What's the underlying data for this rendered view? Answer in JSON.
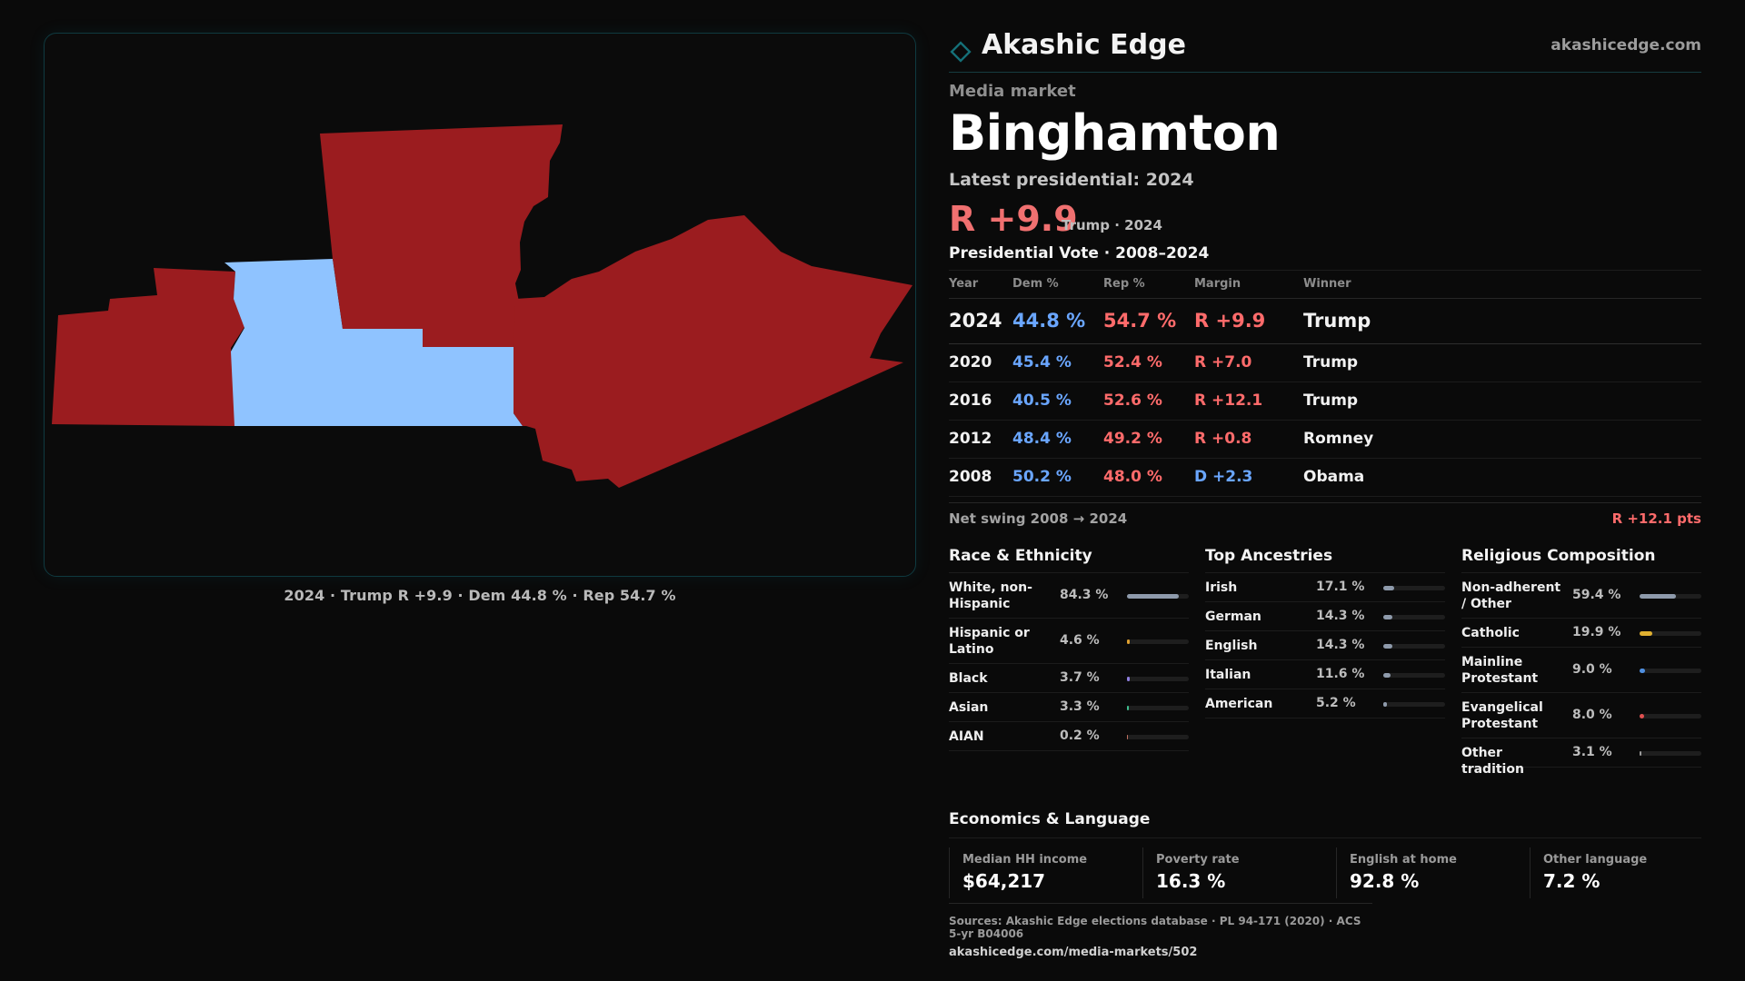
{
  "brand": {
    "name": "Akashic Edge",
    "url": "akashicedge.com",
    "logo_icon": "diamond-outline-icon"
  },
  "colors": {
    "rep": "#9b1c1f",
    "dem": "#8fc3ff",
    "rep_text": "#ff6b6b",
    "dem_text": "#6aa6ff",
    "accent": "#0f5a60"
  },
  "map": {
    "caption": "2024 · Trump R +9.9 · Dem 44.8 % · Rep 54.7 %",
    "regions": [
      {
        "id": "west-county",
        "party": "rep"
      },
      {
        "id": "broome-county",
        "party": "dem"
      },
      {
        "id": "chenango-county",
        "party": "rep"
      },
      {
        "id": "susquehanna-county",
        "party": "rep"
      }
    ]
  },
  "header": {
    "kicker": "Media market",
    "title": "Binghamton",
    "latest_label": "Latest presidential: 2024",
    "big_margin": "R +9.9",
    "winner_tag": "Trump · 2024"
  },
  "votes": {
    "heading": "Presidential Vote · 2008–2024",
    "columns": [
      "Year",
      "Dem %",
      "Rep %",
      "Margin",
      "Winner"
    ],
    "rows": [
      {
        "year": "2024",
        "dem": "44.8 %",
        "rep": "54.7 %",
        "margin": "R +9.9",
        "winner": "Trump"
      },
      {
        "year": "2020",
        "dem": "45.4 %",
        "rep": "52.4 %",
        "margin": "R +7.0",
        "winner": "Trump"
      },
      {
        "year": "2016",
        "dem": "40.5 %",
        "rep": "52.6 %",
        "margin": "R +12.1",
        "winner": "Trump"
      },
      {
        "year": "2012",
        "dem": "48.4 %",
        "rep": "49.2 %",
        "margin": "R +0.8",
        "winner": "Romney"
      },
      {
        "year": "2008",
        "dem": "50.2 %",
        "rep": "48.0 %",
        "margin": "D +2.3",
        "winner": "Obama"
      }
    ],
    "swing_label": "Net swing 2008 → 2024",
    "swing_value": "R +12.1 pts"
  },
  "race": {
    "heading": "Race & Ethnicity",
    "items": [
      {
        "label": "White, non-Hispanic",
        "value": "84.3 %",
        "pct": 84.3,
        "color": "#8e9aab"
      },
      {
        "label": "Hispanic or Latino",
        "value": "4.6 %",
        "pct": 4.6,
        "color": "#e0a030"
      },
      {
        "label": "Black",
        "value": "3.7 %",
        "pct": 3.7,
        "color": "#8f7fe0"
      },
      {
        "label": "Asian",
        "value": "3.3 %",
        "pct": 3.3,
        "color": "#3fbf8f"
      },
      {
        "label": "AIAN",
        "value": "0.2 %",
        "pct": 0.2,
        "color": "#c07060"
      }
    ]
  },
  "ancestry": {
    "heading": "Top Ancestries",
    "items": [
      {
        "label": "Irish",
        "value": "17.1 %",
        "pct": 17.1
      },
      {
        "label": "German",
        "value": "14.3 %",
        "pct": 14.3
      },
      {
        "label": "English",
        "value": "14.3 %",
        "pct": 14.3
      },
      {
        "label": "Italian",
        "value": "11.6 %",
        "pct": 11.6
      },
      {
        "label": "American",
        "value": "5.2 %",
        "pct": 5.2
      }
    ]
  },
  "religion": {
    "heading": "Religious Composition",
    "items": [
      {
        "label": "Non-adherent / Other",
        "value": "59.4 %",
        "pct": 59.4,
        "color": "#8e9aab"
      },
      {
        "label": "Catholic",
        "value": "19.9 %",
        "pct": 19.9,
        "color": "#e0b030"
      },
      {
        "label": "Mainline Protestant",
        "value": "9.0 %",
        "pct": 9.0,
        "color": "#4f8fe0"
      },
      {
        "label": "Evangelical Protestant",
        "value": "8.0 %",
        "pct": 8.0,
        "color": "#e05050"
      },
      {
        "label": "Other tradition",
        "value": "3.1 %",
        "pct": 3.1,
        "color": "#9a9a9a"
      }
    ]
  },
  "economics": {
    "heading": "Economics & Language",
    "cards": [
      {
        "label": "Median HH income",
        "value": "$64,217"
      },
      {
        "label": "Poverty rate",
        "value": "16.3 %"
      },
      {
        "label": "English at home",
        "value": "92.8 %"
      },
      {
        "label": "Other language",
        "value": "7.2 %"
      }
    ]
  },
  "sources": {
    "line": "Sources: Akashic Edge elections database · PL 94-171 (2020) · ACS 5-yr B04006",
    "url": "akashicedge.com/media-markets/502"
  }
}
